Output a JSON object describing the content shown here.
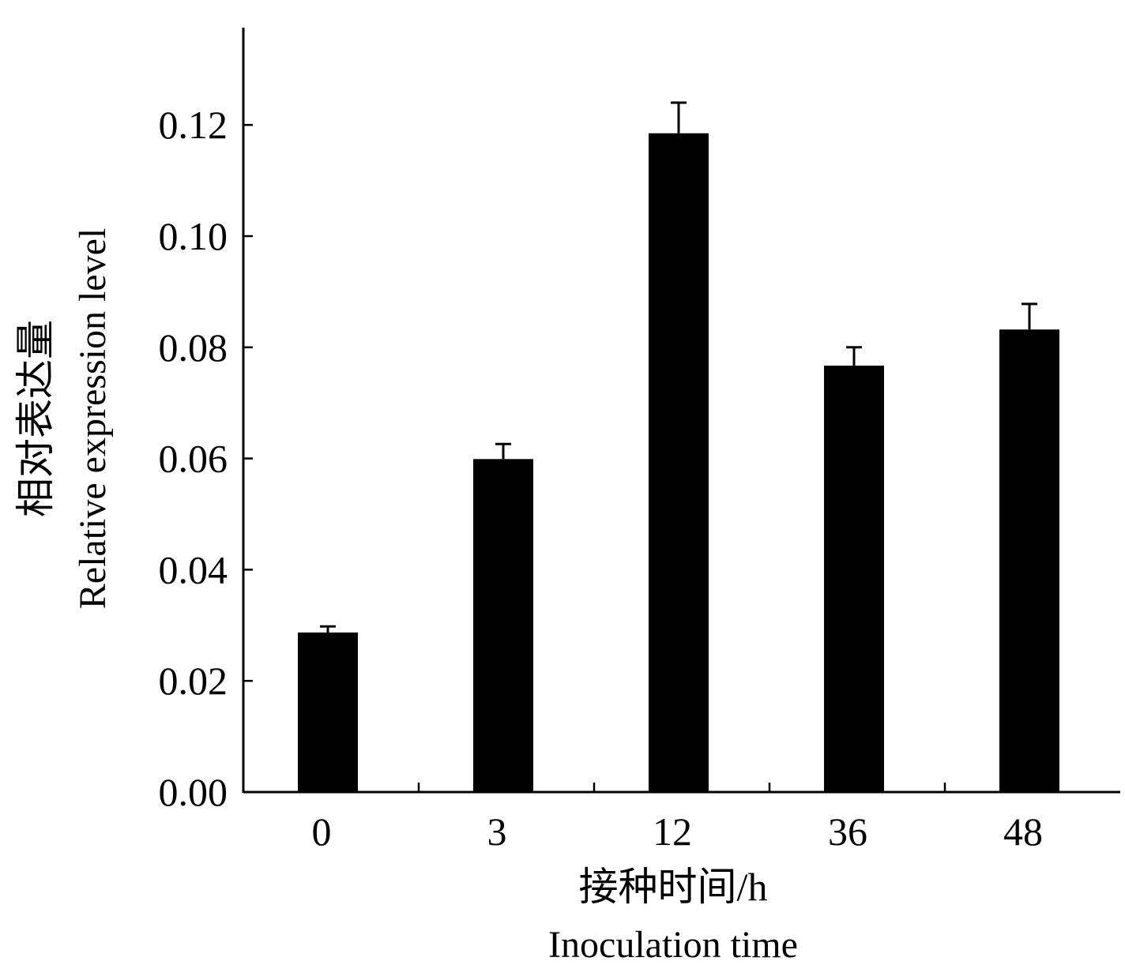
{
  "chart_data": {
    "type": "bar",
    "categories": [
      "0",
      "3",
      "12",
      "36",
      "48"
    ],
    "values": [
      0.0287,
      0.0599,
      0.1185,
      0.0767,
      0.0832
    ],
    "errors": [
      0.0011,
      0.0027,
      0.0055,
      0.0033,
      0.0046
    ],
    "xlabel": "接种时间/h",
    "xlabel_en": "Inoculation  time",
    "ylabel": "相对表达量",
    "ylabel_en": "Relative  expression  level",
    "ylim": [
      0,
      0.1375
    ],
    "yticks": [
      "0.00",
      "0.02",
      "0.04",
      "0.06",
      "0.08",
      "0.10",
      "0.12"
    ],
    "grid": false,
    "bar_color": "#000000"
  }
}
